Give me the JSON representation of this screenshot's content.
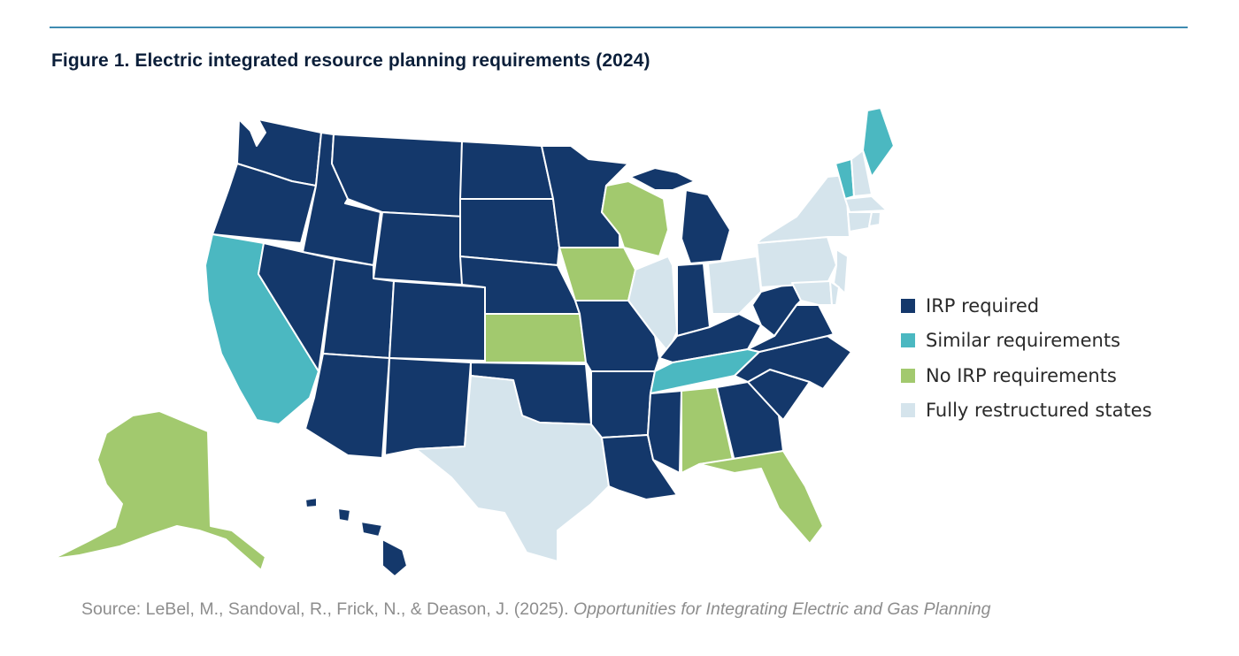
{
  "figure": {
    "title": "Figure 1. Electric integrated resource planning requirements (2024)"
  },
  "legend": {
    "items": [
      {
        "key": "irp",
        "label": "IRP required",
        "color": "#14386b"
      },
      {
        "key": "similar",
        "label": "Similar requirements",
        "color": "#4bb8c1"
      },
      {
        "key": "none",
        "label": "No IRP requirements",
        "color": "#a2c96e"
      },
      {
        "key": "restructured",
        "label": "Fully restructured states",
        "color": "#d5e4ec"
      }
    ]
  },
  "states": {
    "irp": [
      "Washington",
      "Oregon",
      "Idaho",
      "Montana",
      "Wyoming",
      "Nevada",
      "Utah",
      "Colorado",
      "Arizona",
      "New Mexico",
      "North Dakota",
      "South Dakota",
      "Nebraska",
      "Minnesota",
      "Missouri",
      "Oklahoma",
      "Arkansas",
      "Louisiana",
      "Mississippi",
      "Michigan",
      "Indiana",
      "Kentucky",
      "West Virginia",
      "Virginia",
      "North Carolina",
      "South Carolina",
      "Georgia",
      "Hawaii"
    ],
    "similar": [
      "California",
      "Tennessee",
      "Vermont",
      "Maine"
    ],
    "none": [
      "Alaska",
      "Wisconsin",
      "Iowa",
      "Kansas",
      "Alabama",
      "Florida"
    ],
    "restructured": [
      "Texas",
      "Illinois",
      "Ohio",
      "Pennsylvania",
      "New York",
      "New Jersey",
      "Maryland",
      "Delaware",
      "New Hampshire",
      "Massachusetts",
      "Connecticut",
      "Rhode Island"
    ]
  },
  "source": {
    "prefix": "Source: LeBel, M., Sandoval, R., Frick, N., & Deason, J. (2025).",
    "title": "Opportunities for Integrating Electric and Gas Planning"
  }
}
